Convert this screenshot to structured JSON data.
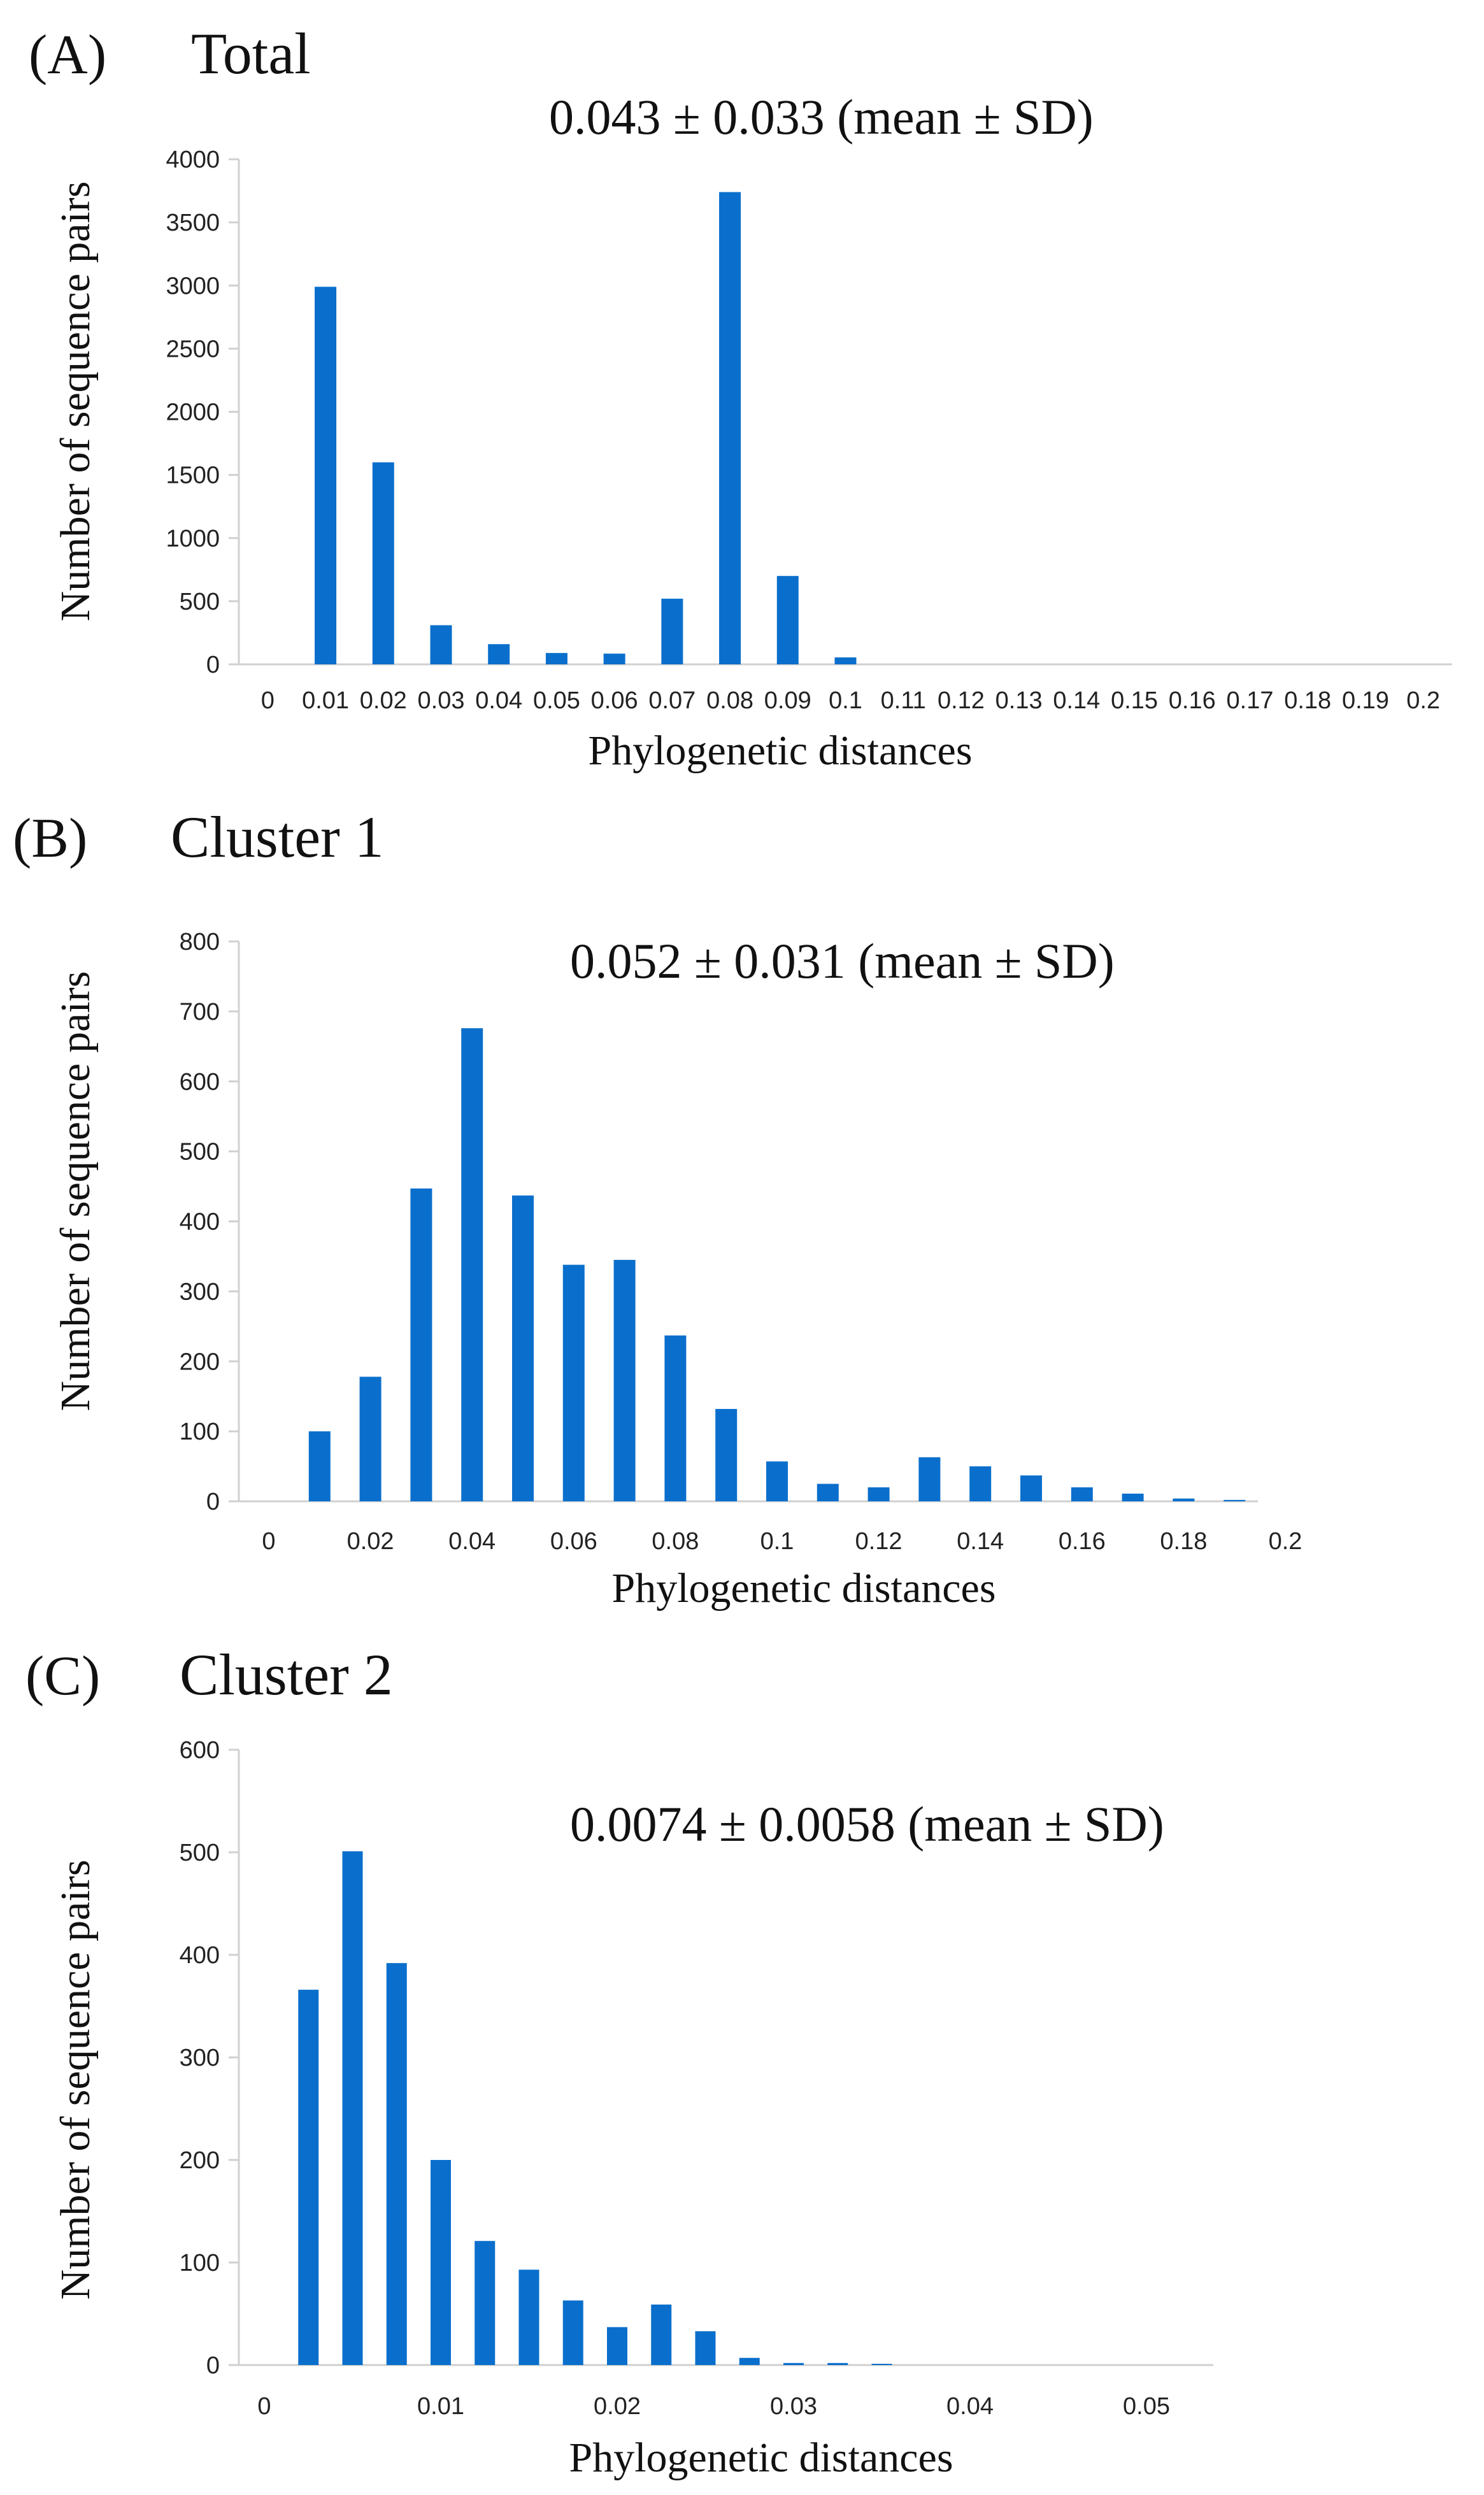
{
  "chart_data": [
    {
      "type": "bar",
      "panel_label": "(A)",
      "title": "Total",
      "subtitle": "0.043 ± 0.033 (mean ± SD)",
      "xlabel": "Phylogenetic distances",
      "ylabel": "Number of sequence pairs",
      "ylim": [
        0,
        4000
      ],
      "yticks": [
        0,
        500,
        1000,
        1500,
        2000,
        2500,
        3000,
        3500,
        4000
      ],
      "tick_labels": [
        "0",
        "0.01",
        "0.02",
        "0.03",
        "0.04",
        "0.05",
        "0.06",
        "0.07",
        "0.08",
        "0.09",
        "0.1",
        "0.11",
        "0.12",
        "0.13",
        "0.14",
        "0.15",
        "0.16",
        "0.17",
        "0.18",
        "0.19",
        "0.2"
      ],
      "categories": [
        "0.01",
        "0.02",
        "0.03",
        "0.04",
        "0.05",
        "0.06",
        "0.07",
        "0.08",
        "0.09",
        "0.1",
        "0.11",
        "0.12",
        "0.13",
        "0.14",
        "0.15",
        "0.16",
        "0.17",
        "0.18",
        "0.19",
        "0.2"
      ],
      "values": [
        2990,
        1600,
        310,
        160,
        90,
        85,
        520,
        3740,
        700,
        55,
        0,
        0,
        0,
        0,
        0,
        0,
        0,
        0,
        0,
        0
      ],
      "grid": false,
      "color": "#0a6fcc"
    },
    {
      "type": "bar",
      "panel_label": "(B)",
      "title": "Cluster 1",
      "subtitle": "0.052 ± 0.031 (mean ± SD)",
      "xlabel": "Phylogenetic distances",
      "ylabel": "Number of sequence pairs",
      "ylim": [
        0,
        800
      ],
      "yticks": [
        0,
        100,
        200,
        300,
        400,
        500,
        600,
        700,
        800
      ],
      "tick_labels": [
        "0",
        "0.02",
        "0.04",
        "0.06",
        "0.08",
        "0.1",
        "0.12",
        "0.14",
        "0.16",
        "0.18",
        "0.2"
      ],
      "categories": [
        "0.01",
        "0.02",
        "0.03",
        "0.04",
        "0.05",
        "0.06",
        "0.07",
        "0.08",
        "0.09",
        "0.1",
        "0.11",
        "0.12",
        "0.13",
        "0.14",
        "0.15",
        "0.16",
        "0.17",
        "0.18",
        "0.19"
      ],
      "values": [
        100,
        178,
        447,
        676,
        437,
        338,
        345,
        237,
        132,
        57,
        25,
        20,
        63,
        50,
        37,
        20,
        11,
        4,
        2
      ],
      "grid": false,
      "color": "#0a6fcc"
    },
    {
      "type": "bar",
      "panel_label": "(C)",
      "title": "Cluster 2",
      "subtitle": "0.0074 ± 0.0058 (mean ± SD)",
      "xlabel": "Phylogenetic distances",
      "ylabel": "Number of sequence pairs",
      "ylim": [
        0,
        600
      ],
      "yticks": [
        0,
        100,
        200,
        300,
        400,
        500,
        600
      ],
      "tick_labels": [
        "0",
        "0.01",
        "0.02",
        "0.03",
        "0.04",
        "0.05"
      ],
      "categories": [
        "0.0025",
        "0.005",
        "0.0075",
        "0.01",
        "0.0125",
        "0.015",
        "0.0175",
        "0.02",
        "0.0225",
        "0.025",
        "0.0275",
        "0.03",
        "0.0325",
        "0.035"
      ],
      "values": [
        366,
        501,
        392,
        200,
        121,
        93,
        63,
        37,
        59,
        33,
        7,
        2,
        2,
        1
      ],
      "grid": false,
      "color": "#0a6fcc"
    }
  ]
}
